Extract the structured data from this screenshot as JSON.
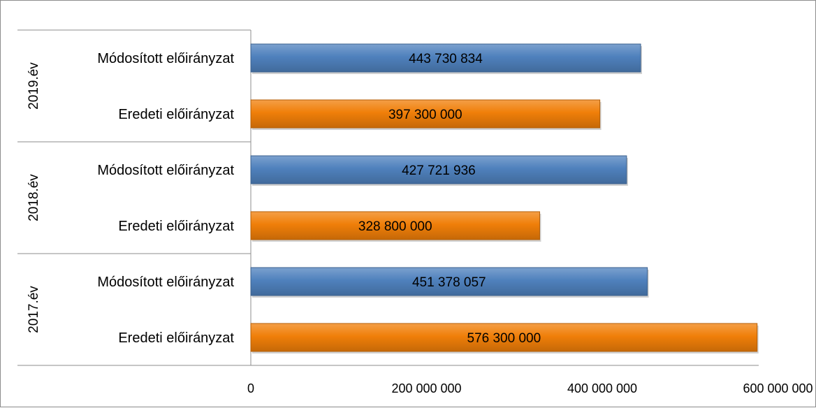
{
  "chart_data": {
    "type": "bar",
    "orientation": "horizontal",
    "groups": [
      {
        "label": "2019.év",
        "bars": [
          {
            "category": "Módosított előirányzat",
            "value": 443730834,
            "label": "443 730 834",
            "color": "#4f81bd"
          },
          {
            "category": "Eredeti előirányzat",
            "value": 397300000,
            "label": "397 300 000",
            "color": "#f07f09"
          }
        ]
      },
      {
        "label": "2018.év",
        "bars": [
          {
            "category": "Módosított előirányzat",
            "value": 427721936,
            "label": "427 721 936",
            "color": "#4f81bd"
          },
          {
            "category": "Eredeti előirányzat",
            "value": 328800000,
            "label": "328 800 000",
            "color": "#f07f09"
          }
        ]
      },
      {
        "label": "2017.év",
        "bars": [
          {
            "category": "Módosított előirányzat",
            "value": 451378057,
            "label": "451 378 057",
            "color": "#4f81bd"
          },
          {
            "category": "Eredeti előirányzat",
            "value": 576300000,
            "label": "576 300 000",
            "color": "#f07f09"
          }
        ]
      }
    ],
    "xlim": [
      0,
      700000000
    ],
    "ticks": [
      {
        "value": 0,
        "label": "0"
      },
      {
        "value": 200000000,
        "label": "200 000 000"
      },
      {
        "value": 400000000,
        "label": "400 000 000"
      },
      {
        "value": 600000000,
        "label": "600 000 000"
      }
    ],
    "grid": false,
    "legend": "none",
    "title": "",
    "xlabel": "",
    "ylabel": ""
  }
}
